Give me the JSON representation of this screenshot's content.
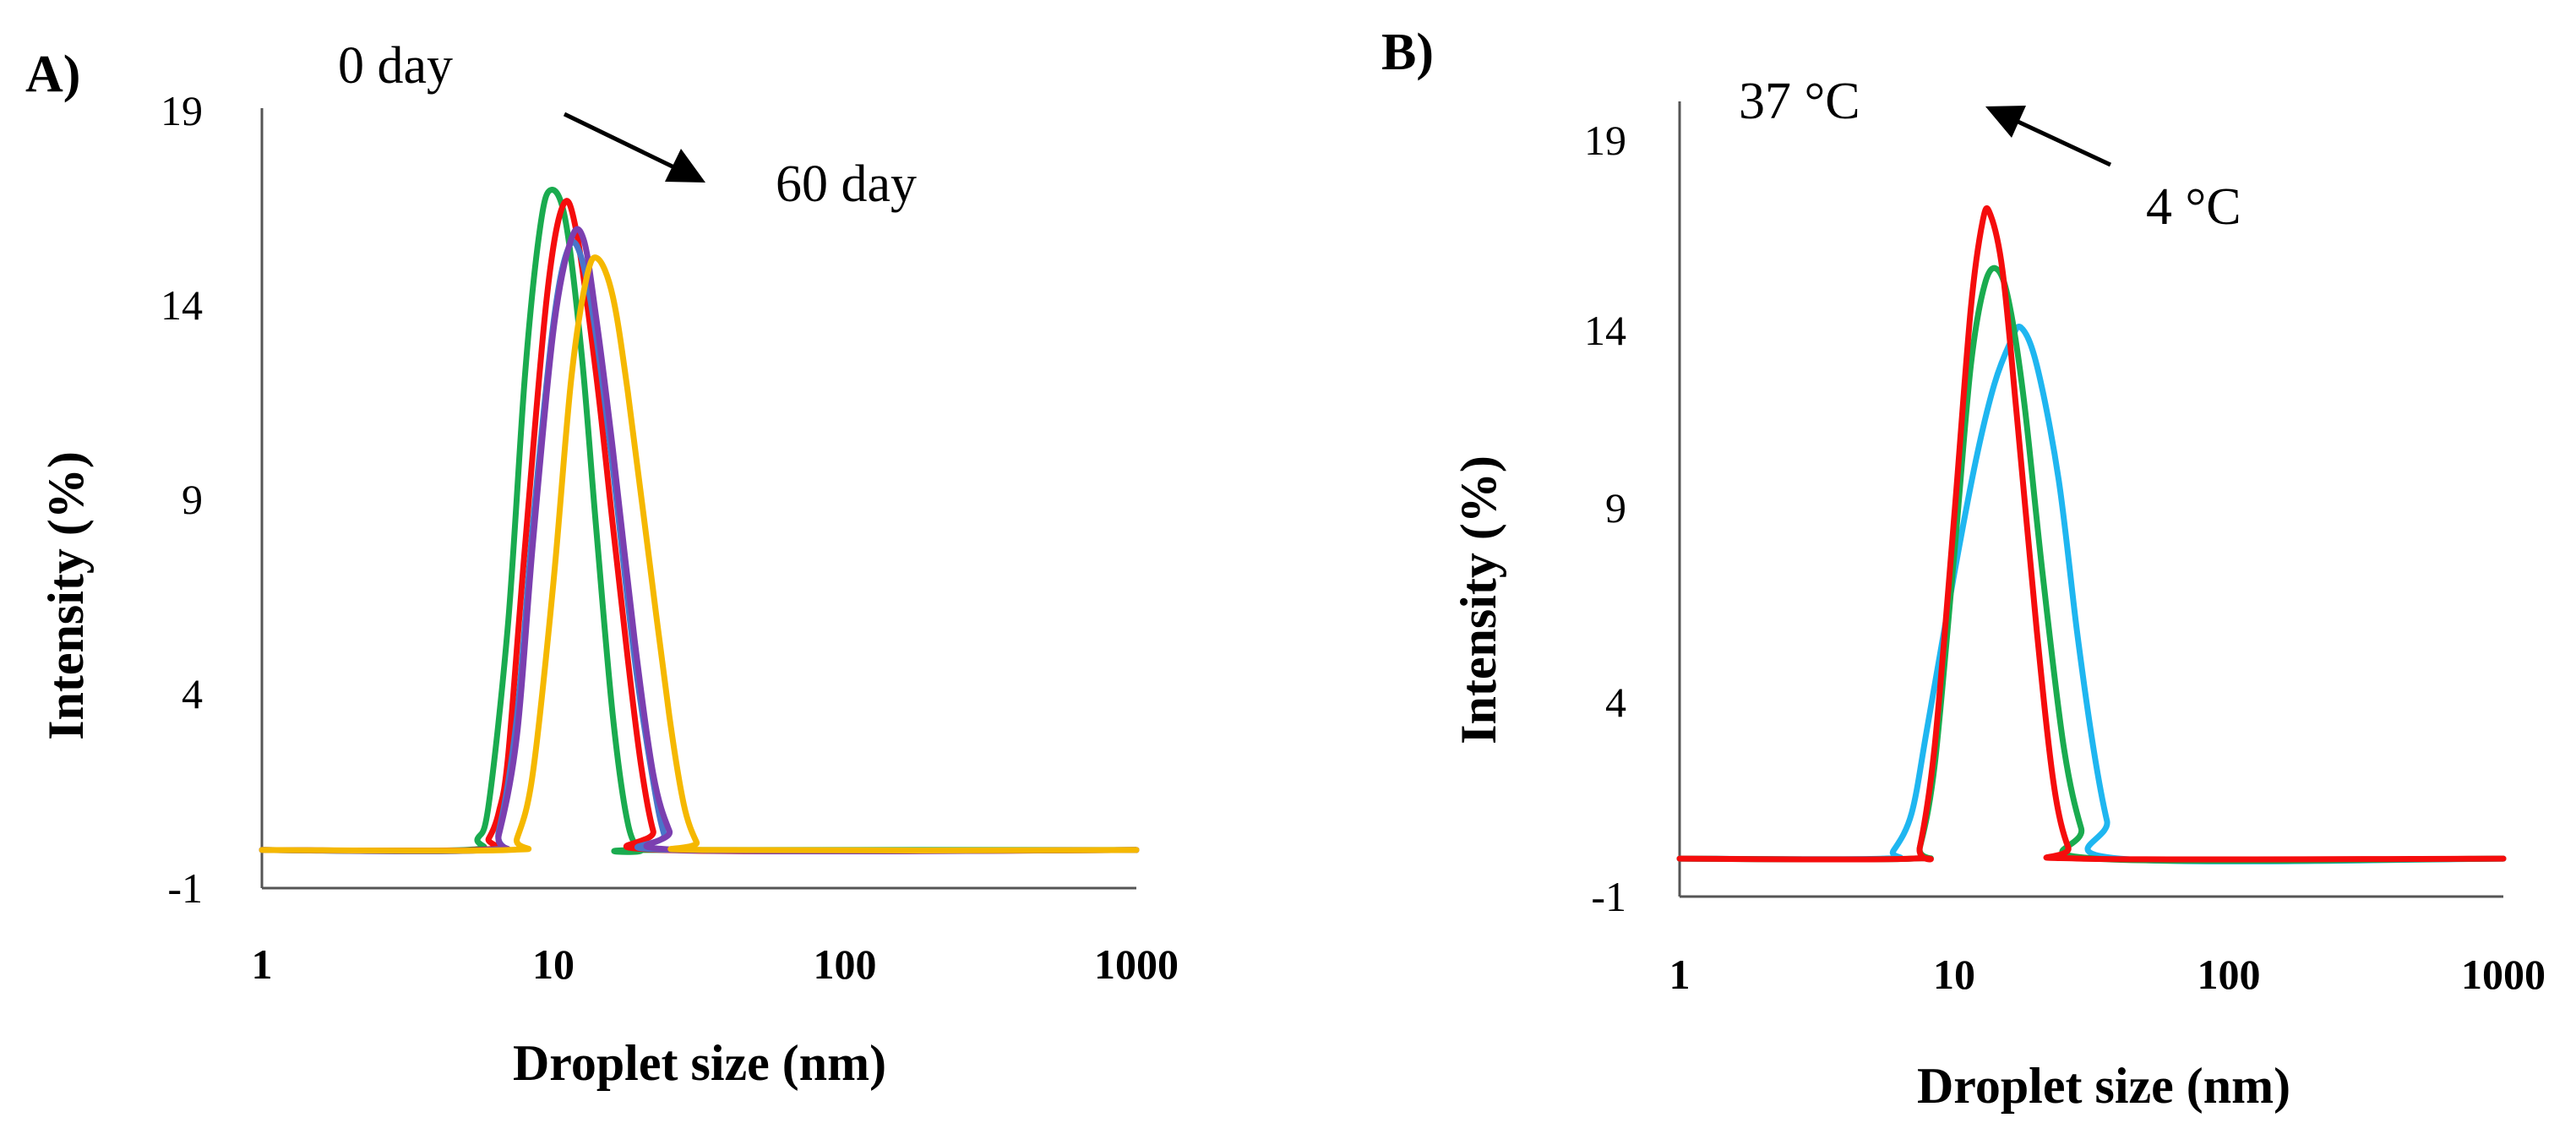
{
  "colors": {
    "axis": "#555555",
    "text": "#000000",
    "green": "#1aab4f",
    "red": "#f50d0d",
    "purple": "#7b3fb0",
    "blue": "#4a74c9",
    "yellow": "#f5b800",
    "cyan": "#1fb6f0"
  },
  "chart_data": [
    {
      "panel": "A)",
      "type": "line",
      "title": "",
      "xlabel": "Droplet size (nm)",
      "ylabel": "Intensity (%)",
      "xscale": "log",
      "xlim": [
        1,
        1000
      ],
      "ylim": [
        -1,
        19
      ],
      "xticks": [
        "1",
        "10",
        "100",
        "1000"
      ],
      "yticks": [
        "-1",
        "4",
        "9",
        "14",
        "19"
      ],
      "grid": false,
      "legend": "none",
      "annotations": {
        "start_label": "0 day",
        "end_label": "60 day",
        "arrow": "from 0 day toward 60 day"
      },
      "series": [
        {
          "name": "0 day",
          "color_key": "green",
          "x": [
            1,
            5,
            5.5,
            6,
            7,
            8,
            9,
            9.8,
            11,
            12.5,
            14,
            16,
            18,
            20,
            22,
            1000
          ],
          "y": [
            0,
            0,
            0.3,
            1.2,
            6,
            12.5,
            16.3,
            17.3,
            16.5,
            13,
            8.5,
            3.5,
            0.7,
            0,
            0,
            0
          ]
        },
        {
          "name": "red",
          "color_key": "red",
          "x": [
            1,
            5.5,
            6,
            6.5,
            7,
            8,
            9.5,
            10.8,
            12,
            14,
            16,
            18,
            20,
            22,
            24,
            1000
          ],
          "y": [
            0,
            0,
            0.3,
            1,
            2.5,
            8,
            14.5,
            16.9,
            16.2,
            12.5,
            8.5,
            5,
            2.2,
            0.5,
            0,
            0
          ]
        },
        {
          "name": "blue",
          "color_key": "blue",
          "x": [
            1,
            5.8,
            6.5,
            7.5,
            8.5,
            10,
            11.3,
            12.5,
            14,
            16,
            19,
            22,
            24,
            26,
            1000
          ],
          "y": [
            0,
            0,
            0.5,
            3.5,
            8.5,
            13.8,
            15.8,
            15.5,
            13.5,
            10,
            5,
            1.8,
            0.4,
            0,
            0
          ]
        },
        {
          "name": "purple",
          "color_key": "purple",
          "x": [
            1,
            6,
            6.5,
            7.5,
            8.5,
            10,
            11.5,
            12.7,
            14,
            16,
            19,
            22,
            25,
            28,
            1000
          ],
          "y": [
            0,
            0,
            0.4,
            3,
            8,
            13.6,
            16,
            16,
            14,
            10.5,
            5.5,
            2,
            0.5,
            0,
            0
          ]
        },
        {
          "name": "60 day",
          "color_key": "yellow",
          "x": [
            1,
            7,
            7.5,
            8.5,
            10,
            11.5,
            13,
            14.2,
            16,
            18,
            21,
            25,
            28,
            31,
            33,
            1000
          ],
          "y": [
            0,
            0,
            0.3,
            2,
            7,
            12.3,
            15,
            15.5,
            14.5,
            12,
            8,
            3.5,
            1.2,
            0.2,
            0,
            0
          ]
        }
      ]
    },
    {
      "panel": "B)",
      "type": "line",
      "title": "",
      "xlabel": "Droplet size (nm)",
      "ylabel": "Intensity (%)",
      "xscale": "log",
      "xlim": [
        1,
        1000
      ],
      "ylim": [
        -1,
        19
      ],
      "xticks": [
        "1",
        "10",
        "100",
        "1000"
      ],
      "yticks": [
        "-1",
        "4",
        "9",
        "14",
        "19"
      ],
      "grid": false,
      "legend": "none",
      "annotations": {
        "start_label": "4 °C",
        "end_label": "37 °C",
        "arrow": "from 4 °C toward 37 °C"
      },
      "series": [
        {
          "name": "4 °C",
          "color_key": "cyan",
          "x": [
            1,
            5.5,
            6,
            7,
            8,
            10,
            12,
            14,
            16,
            17.5,
            20,
            24,
            28,
            32,
            36,
            40,
            1000
          ],
          "y": [
            0,
            0,
            0.2,
            1.2,
            3.5,
            7.5,
            10.5,
            12.5,
            13.6,
            14,
            13,
            10,
            6,
            3,
            1,
            0,
            0
          ]
        },
        {
          "name": "green",
          "color_key": "green",
          "x": [
            1,
            7,
            7.5,
            8.5,
            10,
            11.5,
            13,
            14.5,
            16,
            18,
            21,
            25,
            29,
            33,
            1000
          ],
          "y": [
            0,
            0,
            0.3,
            2.5,
            8,
            13,
            15.2,
            15.5,
            14.5,
            12,
            7.5,
            3,
            0.8,
            0,
            0
          ]
        },
        {
          "name": "37 °C",
          "color_key": "red",
          "x": [
            1,
            7,
            7.5,
            8.5,
            10,
            11.5,
            12.7,
            13.5,
            15,
            17,
            20,
            23,
            26,
            29,
            1000
          ],
          "y": [
            0,
            0,
            0.3,
            3,
            9,
            14.5,
            16.8,
            17,
            15.5,
            11.5,
            6,
            2,
            0.3,
            0,
            0
          ]
        }
      ]
    }
  ]
}
